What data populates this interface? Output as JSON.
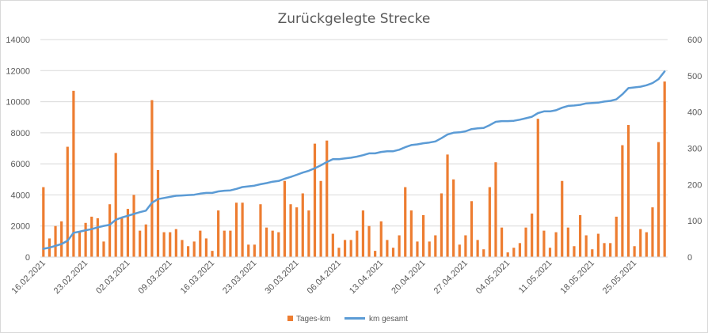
{
  "chart_data": {
    "type": "bar+line",
    "title": "Zurückgelegte Strecke",
    "xlabel": "",
    "ylabel": "",
    "y2label": "",
    "ylim": [
      0,
      14000
    ],
    "y2lim": [
      0,
      600
    ],
    "yticks": [
      0,
      2000,
      4000,
      6000,
      8000,
      10000,
      12000,
      14000
    ],
    "y2ticks": [
      0,
      100,
      200,
      300,
      400,
      500,
      600
    ],
    "grid": "horizontal",
    "legend_position": "bottom",
    "x_tick_labels": [
      "16.02.2021",
      "23.02.2021",
      "02.03.2021",
      "09.03.2021",
      "16.03.2021",
      "23.03.2021",
      "30.03.2021",
      "06.04.2021",
      "13.04.2021",
      "20.04.2021",
      "27.04.2021",
      "04.05.2021",
      "11.05.2021",
      "18.05.2021",
      "25.05.2021"
    ],
    "x_start": "16.02.2021",
    "x_end": "31.05.2021",
    "series": [
      {
        "name": "Tages-km",
        "type": "bar",
        "axis": "left",
        "color": "#ED7D31",
        "values": [
          4500,
          1200,
          2000,
          2300,
          7100,
          10700,
          1600,
          2200,
          2600,
          2500,
          1000,
          3400,
          6700,
          2500,
          3100,
          4000,
          1700,
          2100,
          10100,
          5600,
          1600,
          1600,
          1800,
          1100,
          700,
          1000,
          1700,
          1200,
          400,
          3000,
          1700,
          1700,
          3500,
          3500,
          800,
          800,
          3400,
          1900,
          1700,
          1600,
          4900,
          3400,
          3200,
          4100,
          3000,
          7300,
          4900,
          7500,
          1500,
          600,
          1100,
          1100,
          1700,
          3000,
          2000,
          400,
          2300,
          1100,
          600,
          1400,
          4500,
          3000,
          1000,
          2700,
          1000,
          1400,
          4100,
          6600,
          5000,
          800,
          1400,
          3600,
          1100,
          500,
          4500,
          6100,
          1900,
          300,
          600,
          900,
          1900,
          2800,
          8900,
          1700,
          600,
          1600,
          4900,
          1900,
          700,
          2700,
          1400,
          500,
          1500,
          900,
          900,
          2600,
          7200,
          8500,
          700,
          1800,
          1600,
          3200,
          7400,
          11300
        ]
      },
      {
        "name": "km gesamt",
        "type": "line",
        "axis": "right",
        "color": "#5B9BD5",
        "values": [
          23,
          26,
          31,
          36,
          45,
          67,
          70,
          74,
          77,
          82,
          86,
          89,
          103,
          109,
          114,
          119,
          124,
          128,
          150,
          160,
          163,
          166,
          169,
          170,
          171,
          172,
          175,
          177,
          177,
          181,
          183,
          184,
          188,
          193,
          195,
          197,
          201,
          204,
          208,
          210,
          216,
          221,
          227,
          233,
          238,
          245,
          253,
          262,
          270,
          270,
          272,
          274,
          277,
          281,
          286,
          286,
          290,
          292,
          292,
          296,
          303,
          309,
          311,
          314,
          316,
          319,
          328,
          338,
          343,
          344,
          347,
          353,
          355,
          356,
          364,
          373,
          375,
          375,
          376,
          379,
          383,
          387,
          397,
          402,
          402,
          405,
          412,
          417,
          418,
          420,
          424,
          425,
          426,
          429,
          431,
          435,
          449,
          466,
          468,
          470,
          474,
          480,
          491,
          512
        ]
      }
    ]
  }
}
